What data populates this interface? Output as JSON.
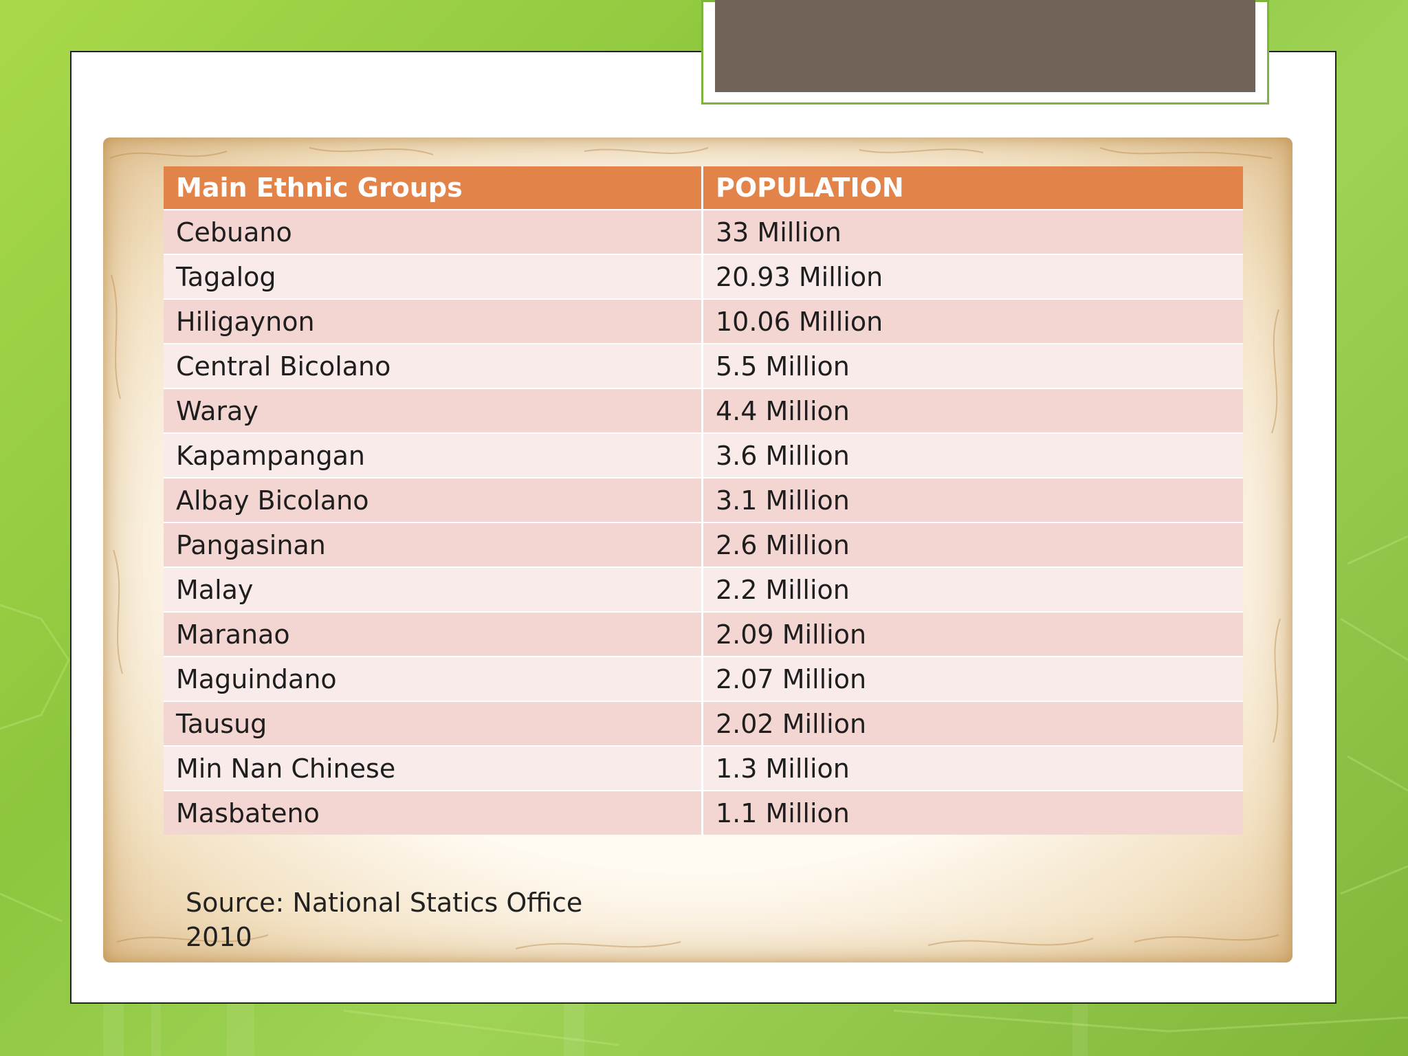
{
  "table": {
    "headers": [
      "Main Ethnic Groups",
      "POPULATION"
    ],
    "rows": [
      [
        "Cebuano",
        "33 Million"
      ],
      [
        "Tagalog",
        "20.93 Million"
      ],
      [
        "Hiligaynon",
        "10.06  Million"
      ],
      [
        "Central Bicolano",
        "5.5 Million"
      ],
      [
        "Waray",
        "4.4 Million"
      ],
      [
        "Kapampangan",
        "3.6 Million"
      ],
      [
        "Albay Bicolano",
        "3.1 Million"
      ],
      [
        "Pangasinan",
        "2.6 Million"
      ],
      [
        "Malay",
        "2.2 Million"
      ],
      [
        "Maranao",
        "2.09 Million"
      ],
      [
        "Maguindano",
        "2.07 Million"
      ],
      [
        "Tausug",
        "2.02 Million"
      ],
      [
        "Min Nan Chinese",
        "1.3 Million"
      ],
      [
        "Masbateno",
        "1.1 Million"
      ]
    ]
  },
  "source": {
    "line1": "Source: National Statics Office",
    "line2": "2010"
  },
  "colors": {
    "header_bg": "#e2834a",
    "row_odd": "#f3d5d2",
    "row_even": "#f8ebea",
    "title_box": "#726359",
    "background": "#8cc63e"
  }
}
